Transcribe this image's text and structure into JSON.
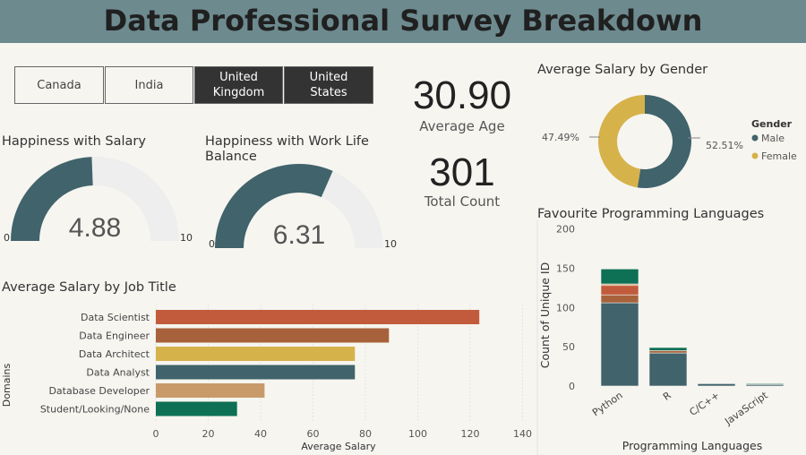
{
  "header": {
    "title": "Data Professional Survey Breakdown"
  },
  "filters": [
    {
      "label": "Canada",
      "selected": false
    },
    {
      "label": "India",
      "selected": false
    },
    {
      "label": "United Kingdom",
      "selected": true
    },
    {
      "label": "United States",
      "selected": true
    }
  ],
  "kpis": {
    "average_age": {
      "value": "30.90",
      "label": "Average Age"
    },
    "total_count": {
      "value": "301",
      "label": "Total Count"
    }
  },
  "gauges": [
    {
      "title": "Happiness with Salary",
      "value": 4.88,
      "value_label": "4.88",
      "min": 0,
      "max": 10,
      "min_label": "0",
      "max_label": "10"
    },
    {
      "title": "Happiness with Work Life Balance",
      "value": 6.31,
      "value_label": "6.31",
      "min": 0,
      "max": 10,
      "min_label": "0",
      "max_label": "10"
    }
  ],
  "colors": {
    "banner": "#6d8a8f",
    "teal": "#41636b",
    "gold": "#d6b24b",
    "rust": "#c25b3c",
    "brown": "#a8623b",
    "tan": "#c89a6a",
    "green": "#0e7055",
    "track": "#eeeeee",
    "selected_button": "#333333"
  },
  "chart_data": [
    {
      "id": "gender",
      "type": "pie",
      "title": "Average Salary by Gender",
      "legend_title": "Gender",
      "legend_position": "right",
      "slices": [
        {
          "name": "Male",
          "value": 52.51,
          "label": "52.51%",
          "color": "#41636b"
        },
        {
          "name": "Female",
          "value": 47.49,
          "label": "47.49%",
          "color": "#d6b24b"
        }
      ]
    },
    {
      "id": "job",
      "type": "bar",
      "orientation": "horizontal",
      "title": "Average Salary by Job Title",
      "xlabel": "Average Salary",
      "ylabel": "Domains",
      "xlim": [
        0,
        140
      ],
      "xticks": [
        0,
        20,
        40,
        60,
        80,
        100,
        120,
        140
      ],
      "grid": true,
      "categories": [
        "Data Scientist",
        "Data Engineer",
        "Data Architect",
        "Data Analyst",
        "Database Developer",
        "Student/Looking/None"
      ],
      "values": [
        123.5,
        89,
        76,
        76,
        41.5,
        31
      ],
      "colors": [
        "#c25b3c",
        "#a8623b",
        "#d6b24b",
        "#41636b",
        "#c89a6a",
        "#0e7055"
      ]
    },
    {
      "id": "lang",
      "type": "bar",
      "stacked": true,
      "title": "Favourite Programming Languages",
      "xlabel": "Programming Languages",
      "ylabel": "Count of Unique ID",
      "ylim": [
        0,
        200
      ],
      "yticks": [
        0,
        50,
        100,
        150,
        200
      ],
      "categories": [
        "Python",
        "R",
        "C/C++",
        "JavaScript"
      ],
      "series": [
        {
          "values": [
            106,
            42,
            3,
            2
          ],
          "color": "#41636b"
        },
        {
          "values": [
            10,
            3,
            0,
            0
          ],
          "color": "#a8623b"
        },
        {
          "values": [
            12,
            0,
            0,
            0
          ],
          "color": "#c25b3c"
        },
        {
          "values": [
            2,
            0,
            0,
            0
          ],
          "color": "#c89a6a"
        },
        {
          "values": [
            19,
            4,
            0,
            1
          ],
          "color": "#0e7055"
        }
      ]
    }
  ]
}
